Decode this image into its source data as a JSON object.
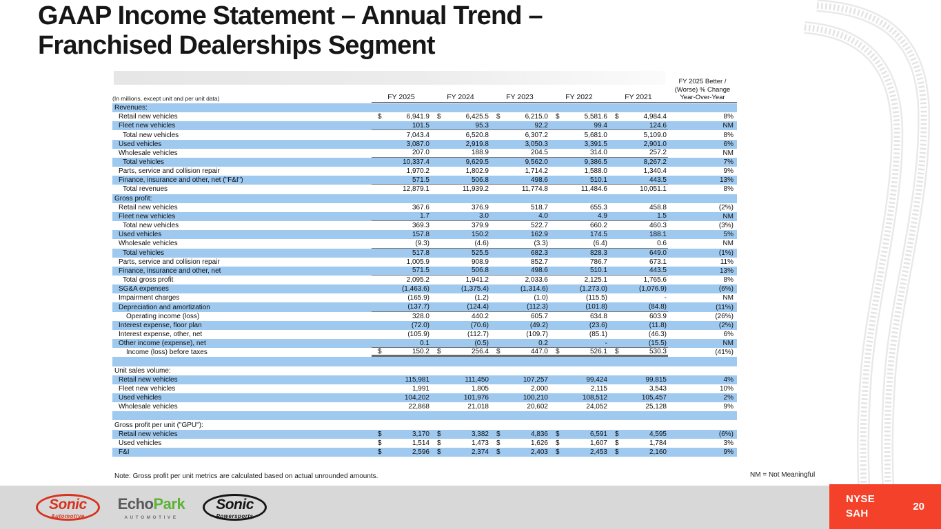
{
  "title": {
    "line1": "GAAP Income Statement – Annual Trend –",
    "line2": "Franchised Dealerships Segment"
  },
  "table": {
    "units_note": "(In millions, except unit and per unit data)",
    "col_headers": [
      "FY 2025",
      "FY 2024",
      "FY 2023",
      "FY 2022",
      "FY 2021"
    ],
    "change_header_lines": [
      "FY 2025 Better /",
      "(Worse) % Change",
      "Year-Over-Year"
    ],
    "rows": [
      {
        "label": "Revenues:",
        "indent": 0,
        "section": true,
        "values": [
          "",
          "",
          "",
          "",
          ""
        ],
        "pct": ""
      },
      {
        "label": "Retail new vehicles",
        "indent": 1,
        "dollar": true,
        "values": [
          "6,941.9",
          "6,425.5",
          "6,215.0",
          "5,581.6",
          "4,984.4"
        ],
        "pct": "8%"
      },
      {
        "label": "Fleet new vehicles",
        "indent": 1,
        "values": [
          "101.5",
          "95.3",
          "92.2",
          "99.4",
          "124.6"
        ],
        "pct": "NM",
        "rule": "single"
      },
      {
        "label": "Total new vehicles",
        "indent": 2,
        "values": [
          "7,043.4",
          "6,520.8",
          "6,307.2",
          "5,681.0",
          "5,109.0"
        ],
        "pct": "8%"
      },
      {
        "label": "Used vehicles",
        "indent": 1,
        "values": [
          "3,087.0",
          "2,919.8",
          "3,050.3",
          "3,391.5",
          "2,901.0"
        ],
        "pct": "6%"
      },
      {
        "label": "Wholesale vehicles",
        "indent": 1,
        "values": [
          "207.0",
          "188.9",
          "204.5",
          "314.0",
          "257.2"
        ],
        "pct": "NM",
        "rule": "single"
      },
      {
        "label": "Total vehicles",
        "indent": 2,
        "values": [
          "10,337.4",
          "9,629.5",
          "9,562.0",
          "9,386.5",
          "8,267.2"
        ],
        "pct": "7%"
      },
      {
        "label": "Parts, service and collision repair",
        "indent": 1,
        "values": [
          "1,970.2",
          "1,802.9",
          "1,714.2",
          "1,588.0",
          "1,340.4"
        ],
        "pct": "9%"
      },
      {
        "label": "Finance, insurance and other, net (\"F&I\")",
        "indent": 1,
        "values": [
          "571.5",
          "506.8",
          "498.6",
          "510.1",
          "443.5"
        ],
        "pct": "13%",
        "rule": "single"
      },
      {
        "label": "Total revenues",
        "indent": 2,
        "values": [
          "12,879.1",
          "11,939.2",
          "11,774.8",
          "11,484.6",
          "10,051.1"
        ],
        "pct": "8%"
      },
      {
        "label": "Gross profit:",
        "indent": 0,
        "section": true,
        "values": [
          "",
          "",
          "",
          "",
          ""
        ],
        "pct": ""
      },
      {
        "label": "Retail new vehicles",
        "indent": 1,
        "values": [
          "367.6",
          "376.9",
          "518.7",
          "655.3",
          "458.8"
        ],
        "pct": "(2%)"
      },
      {
        "label": "Fleet new vehicles",
        "indent": 1,
        "values": [
          "1.7",
          "3.0",
          "4.0",
          "4.9",
          "1.5"
        ],
        "pct": "NM",
        "rule": "single"
      },
      {
        "label": "Total new vehicles",
        "indent": 2,
        "values": [
          "369.3",
          "379.9",
          "522.7",
          "660.2",
          "460.3"
        ],
        "pct": "(3%)"
      },
      {
        "label": "Used vehicles",
        "indent": 1,
        "values": [
          "157.8",
          "150.2",
          "162.9",
          "174.5",
          "188.1"
        ],
        "pct": "5%"
      },
      {
        "label": "Wholesale vehicles",
        "indent": 1,
        "values": [
          "(9.3)",
          "(4.6)",
          "(3.3)",
          "(6.4)",
          "0.6"
        ],
        "pct": "NM",
        "rule": "single"
      },
      {
        "label": "Total vehicles",
        "indent": 2,
        "values": [
          "517.8",
          "525.5",
          "682.3",
          "828.3",
          "649.0"
        ],
        "pct": "(1%)"
      },
      {
        "label": "Parts, service and collision repair",
        "indent": 1,
        "values": [
          "1,005.9",
          "908.9",
          "852.7",
          "786.7",
          "673.1"
        ],
        "pct": "11%"
      },
      {
        "label": "Finance, insurance and other, net",
        "indent": 1,
        "values": [
          "571.5",
          "506.8",
          "498.6",
          "510.1",
          "443.5"
        ],
        "pct": "13%",
        "rule": "single"
      },
      {
        "label": "Total gross profit",
        "indent": 2,
        "values": [
          "2,095.2",
          "1,941.2",
          "2,033.6",
          "2,125.1",
          "1,765.6"
        ],
        "pct": "8%"
      },
      {
        "label": "SG&A expenses",
        "indent": 1,
        "values": [
          "(1,463.6)",
          "(1,375.4)",
          "(1,314.6)",
          "(1,273.0)",
          "(1,076.9)"
        ],
        "pct": "(6%)"
      },
      {
        "label": "Impairment charges",
        "indent": 1,
        "values": [
          "(165.9)",
          "(1.2)",
          "(1.0)",
          "(115.5)",
          "-"
        ],
        "pct": "NM"
      },
      {
        "label": "Depreciation and amortization",
        "indent": 1,
        "values": [
          "(137.7)",
          "(124.4)",
          "(112.3)",
          "(101.8)",
          "(84.8)"
        ],
        "pct": "(11%)",
        "rule": "single"
      },
      {
        "label": "Operating income (loss)",
        "indent": 3,
        "values": [
          "328.0",
          "440.2",
          "605.7",
          "634.8",
          "603.9"
        ],
        "pct": "(26%)"
      },
      {
        "label": "Interest expense, floor plan",
        "indent": 1,
        "values": [
          "(72.0)",
          "(70.6)",
          "(49.2)",
          "(23.6)",
          "(11.8)"
        ],
        "pct": "(2%)"
      },
      {
        "label": "Interest expense, other, net",
        "indent": 1,
        "values": [
          "(105.9)",
          "(112.7)",
          "(109.7)",
          "(85.1)",
          "(46.3)"
        ],
        "pct": "6%"
      },
      {
        "label": "Other income (expense), net",
        "indent": 1,
        "values": [
          "0.1",
          "(0.5)",
          "0.2",
          "-",
          "(15.5)"
        ],
        "pct": "NM",
        "rule": "single"
      },
      {
        "label": "Income (loss) before taxes",
        "indent": 3,
        "dollar": true,
        "values": [
          "150.2",
          "256.4",
          "447.0",
          "526.1",
          "530.3"
        ],
        "pct": "(41%)",
        "rule": "total"
      },
      {
        "label": "",
        "indent": 0,
        "values": [
          "",
          "",
          "",
          "",
          ""
        ],
        "pct": ""
      },
      {
        "label": "Unit sales volume:",
        "indent": 0,
        "section": true,
        "values": [
          "",
          "",
          "",
          "",
          ""
        ],
        "pct": ""
      },
      {
        "label": "Retail new vehicles",
        "indent": 1,
        "values": [
          "115,981",
          "111,450",
          "107,257",
          "99,424",
          "99,815"
        ],
        "pct": "4%"
      },
      {
        "label": "Fleet new vehicles",
        "indent": 1,
        "values": [
          "1,991",
          "1,805",
          "2,000",
          "2,115",
          "3,543"
        ],
        "pct": "10%"
      },
      {
        "label": "Used vehicles",
        "indent": 1,
        "values": [
          "104,202",
          "101,976",
          "100,210",
          "108,512",
          "105,457"
        ],
        "pct": "2%"
      },
      {
        "label": "Wholesale vehicles",
        "indent": 1,
        "values": [
          "22,868",
          "21,018",
          "20,602",
          "24,052",
          "25,128"
        ],
        "pct": "9%"
      },
      {
        "label": "",
        "indent": 0,
        "values": [
          "",
          "",
          "",
          "",
          ""
        ],
        "pct": ""
      },
      {
        "label": "Gross profit per unit (\"GPU\"):",
        "indent": 0,
        "section": true,
        "values": [
          "",
          "",
          "",
          "",
          ""
        ],
        "pct": ""
      },
      {
        "label": "Retail new vehicles",
        "indent": 1,
        "dollar": true,
        "values": [
          "3,170",
          "3,382",
          "4,836",
          "6,591",
          "4,595"
        ],
        "pct": "(6%)"
      },
      {
        "label": "Used vehicles",
        "indent": 1,
        "dollar": true,
        "values": [
          "1,514",
          "1,473",
          "1,626",
          "1,607",
          "1,784"
        ],
        "pct": "3%"
      },
      {
        "label": "F&I",
        "indent": 1,
        "dollar": true,
        "values": [
          "2,596",
          "2,374",
          "2,403",
          "2,453",
          "2,160"
        ],
        "pct": "9%"
      }
    ]
  },
  "footnote": "Note: Gross profit per unit metrics are calculated based on actual unrounded amounts.",
  "nm_note": "NM = Not Meaningful",
  "footer": {
    "ticker_exchange": "NYSE",
    "ticker_symbol": "SAH",
    "page_number": "20",
    "logos": {
      "sonic_automotive": {
        "word": "Sonic",
        "sub": "Automotive"
      },
      "echopark": {
        "word1": "Echo",
        "word2": "Park",
        "sub": "AUTOMOTIVE"
      },
      "sonic_powersports": {
        "word": "Sonic",
        "sub": "Powersports"
      }
    }
  },
  "colors": {
    "row_blue": "#9fc9ef",
    "accent_red": "#f4422a",
    "footer_gray": "#d8d8d8",
    "logo_red": "#d6331f",
    "logo_green": "#5cb335"
  }
}
